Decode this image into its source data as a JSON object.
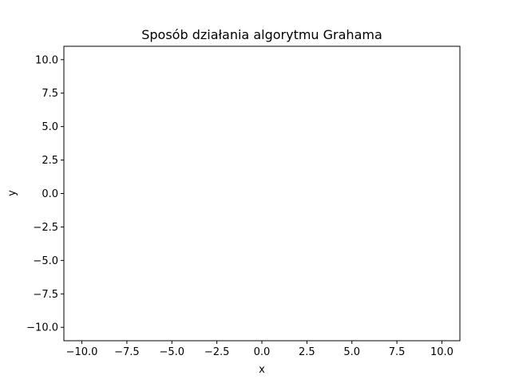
{
  "chart_data": {
    "type": "scatter",
    "title": "Sposób działania algorytmu Grahama",
    "xlabel": "x",
    "ylabel": "y",
    "xlim": [
      -11,
      11
    ],
    "ylim": [
      -11,
      11
    ],
    "xticks": [
      -10,
      -7.5,
      -5,
      -2.5,
      0,
      2.5,
      5,
      7.5,
      10
    ],
    "yticks": [
      -10,
      -7.5,
      -5,
      -2.5,
      0,
      2.5,
      5,
      7.5,
      10
    ],
    "xtick_labels": [
      "−10.0",
      "−7.5",
      "−5.0",
      "−2.5",
      "0.0",
      "2.5",
      "5.0",
      "7.5",
      "10.0"
    ],
    "ytick_labels": [
      "−10.0",
      "−7.5",
      "−5.0",
      "−2.5",
      "0.0",
      "2.5",
      "5.0",
      "7.5",
      "10.0"
    ],
    "grid": false,
    "series": []
  }
}
